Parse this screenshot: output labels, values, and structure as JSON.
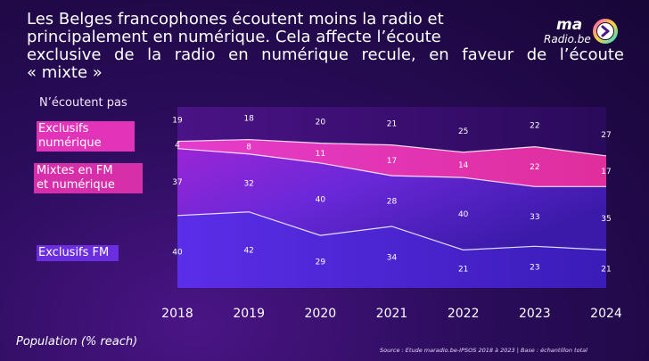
{
  "title_lines": [
    "Les Belges francophones écoutent moins la radio et",
    "principalement en numérique. Cela affecte l’écoute",
    "exclusive de la radio en numérique recule, en faveur de l’écoute",
    "« mixte »"
  ],
  "logo": {
    "top": "ma",
    "bottom": "Radio.be"
  },
  "legend_labels": {
    "not_listening": "N’écoutent pas",
    "exclusive_digital_1": "Exclusifs",
    "exclusive_digital_2": "numérique",
    "mixed_1": "Mixtes en FM",
    "mixed_2": "et numérique",
    "exclusive_fm": "Exclusifs FM"
  },
  "footer": {
    "population": "Population (% reach)",
    "source": "Source : Etude maradio.be-IPSOS 2018 à 2023 | Base : échantillon total"
  },
  "chart_data": {
    "type": "area",
    "stacked": true,
    "x": [
      "2018",
      "2019",
      "2020",
      "2021",
      "2022",
      "2023",
      "2024"
    ],
    "series": [
      {
        "name": "Exclusifs FM",
        "values": [
          40,
          42,
          29,
          34,
          21,
          23,
          21
        ],
        "color": "#5a2fe6"
      },
      {
        "name": "Mixtes en FM et numérique",
        "values": [
          37,
          32,
          40,
          28,
          40,
          33,
          35
        ],
        "color": "#a42ad8"
      },
      {
        "name": "Exclusifs numérique",
        "values": [
          4,
          8,
          11,
          17,
          14,
          22,
          17
        ],
        "color": "#e23cc4"
      },
      {
        "name": "N’écoutent pas",
        "values": [
          19,
          18,
          20,
          21,
          25,
          22,
          27
        ],
        "color": "#3a0f6a"
      }
    ],
    "ylim": [
      0,
      100
    ],
    "grid": false
  }
}
